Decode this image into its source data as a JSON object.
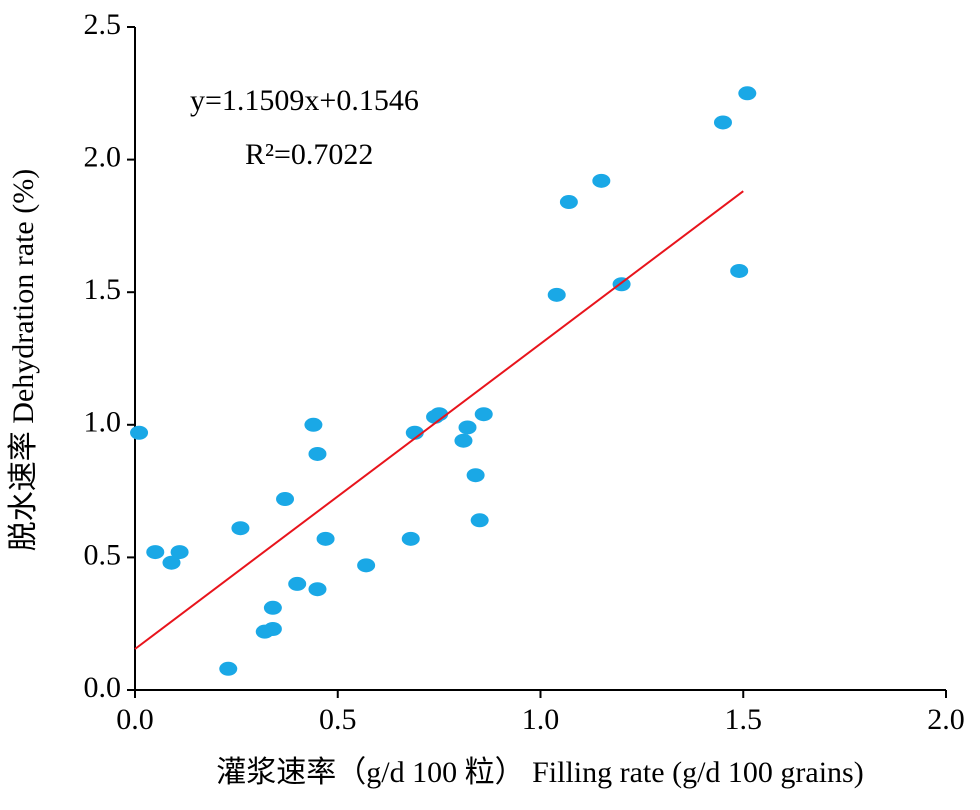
{
  "chart_data": {
    "type": "scatter",
    "x_label": "灌浆速率（g/d 100 粒） Filling rate (g/d 100 grains)",
    "y_label": "脱水速率 Dehydration rate (%)",
    "annotations": [
      "y=1.1509x+0.1546",
      "R²=0.7022"
    ],
    "xlim": [
      0,
      2.0
    ],
    "ylim": [
      0,
      2.5
    ],
    "xticks": [
      {
        "value": 0,
        "label": "0.0"
      },
      0.5,
      {
        "value": 1,
        "label": "1.0"
      },
      1.5,
      {
        "value": 2,
        "label": "2.0"
      }
    ],
    "yticks": [
      {
        "value": 0,
        "label": "0.0"
      },
      0.5,
      {
        "value": 1,
        "label": "1.0"
      },
      1.5,
      {
        "value": 2,
        "label": "2.0"
      },
      2.5
    ],
    "series": [
      {
        "color": "#1aa8e6",
        "x": [
          0.01,
          0.05,
          0.09,
          0.11,
          0.23,
          0.26,
          0.32,
          0.34,
          0.34,
          0.37,
          0.4,
          0.44,
          0.45,
          0.45,
          0.47,
          0.57,
          0.68,
          0.69,
          0.74,
          0.75,
          0.81,
          0.82,
          0.84,
          0.85,
          0.86,
          1.04,
          1.07,
          1.15,
          1.2,
          1.45,
          1.49,
          1.51
        ],
        "values": [
          0.97,
          0.52,
          0.48,
          0.52,
          0.08,
          0.61,
          0.22,
          0.23,
          0.31,
          0.72,
          0.4,
          1.0,
          0.38,
          0.89,
          0.57,
          0.47,
          0.57,
          0.97,
          1.03,
          1.04,
          0.94,
          0.99,
          0.81,
          0.64,
          1.04,
          1.49,
          1.84,
          1.92,
          1.53,
          2.14,
          1.58,
          2.25
        ]
      },
      {
        "color": "#e8141c",
        "kind": "line",
        "x": [
          0,
          1.5
        ],
        "values": [
          0.1546,
          1.881
        ]
      }
    ]
  }
}
